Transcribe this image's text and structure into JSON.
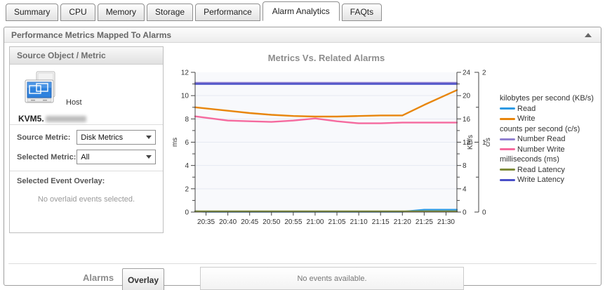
{
  "tabs": {
    "items": [
      "Summary",
      "CPU",
      "Memory",
      "Storage",
      "Performance",
      "Alarm Analytics",
      "FAQts"
    ],
    "active": "Alarm Analytics"
  },
  "panel": {
    "title": "Performance Metrics Mapped To Alarms"
  },
  "source_panel": {
    "title": "Source Object / Metric",
    "host_type": "Host",
    "host_name_prefix": "KVM5.",
    "source_metric_label": "Source Metric:",
    "source_metric_value": "Disk Metrics",
    "selected_metric_label": "Selected Metric:",
    "selected_metric_value": "All",
    "event_overlay_label": "Selected Event Overlay:",
    "event_overlay_empty": "No overlaid events selected."
  },
  "alarms": {
    "label": "Alarms",
    "overlay_button": "Overlay",
    "events_empty": "No events available."
  },
  "chart_data": {
    "type": "line",
    "title": "Metrics Vs. Related Alarms",
    "x_labels": [
      "20:35",
      "20:40",
      "20:45",
      "20:50",
      "20:55",
      "21:00",
      "21:05",
      "21:10",
      "21:15",
      "21:20",
      "21:25",
      "21:30"
    ],
    "axes": [
      {
        "id": "ms",
        "label": "ms",
        "side": "left",
        "min": 0,
        "max": 12,
        "major": 2,
        "minor": 1
      },
      {
        "id": "kbps",
        "label": "KB/s",
        "side": "right",
        "min": 0,
        "max": 24,
        "major": 4,
        "minor": 2
      },
      {
        "id": "cps",
        "label": "c/s",
        "side": "right2",
        "min": 0,
        "max": 2,
        "major": 1,
        "minor": 0.5
      }
    ],
    "grid": {
      "horizontal": true,
      "plot_bg": "#f8f9fc",
      "grid_color": "#e6e9f2"
    },
    "legend_groups": [
      {
        "label": "kilobytes per second (KB/s)",
        "items": [
          {
            "name": "Read",
            "color": "#2d9ae3"
          },
          {
            "name": "Write",
            "color": "#e8860d"
          }
        ]
      },
      {
        "label": "counts per second (c/s)",
        "items": [
          {
            "name": "Number Read",
            "color": "#9080d0"
          },
          {
            "name": "Number Write",
            "color": "#f56a9e"
          }
        ]
      },
      {
        "label": "milliseconds (ms)",
        "items": [
          {
            "name": "Read Latency",
            "color": "#7f8c3a"
          },
          {
            "name": "Write Latency",
            "color": "#4a50c8"
          }
        ]
      }
    ],
    "series": [
      {
        "name": "Read",
        "axis": "kbps",
        "color": "#2d9ae3",
        "values": [
          0.05,
          0.05,
          0.05,
          0.05,
          0.05,
          0.05,
          0.05,
          0.05,
          0.05,
          0.05,
          0.4,
          0.4
        ]
      },
      {
        "name": "Write",
        "axis": "kbps",
        "color": "#e8860d",
        "values": [
          17.8,
          17.4,
          17.0,
          16.7,
          16.5,
          16.4,
          16.4,
          16.5,
          16.6,
          16.6,
          18.4,
          20.1
        ]
      },
      {
        "name": "Number Read",
        "axis": "cps",
        "color": "#9080d0",
        "values": [
          1.85,
          1.85,
          1.85,
          1.85,
          1.85,
          1.85,
          1.85,
          1.85,
          1.85,
          1.85,
          1.85,
          1.85
        ]
      },
      {
        "name": "Number Write",
        "axis": "cps",
        "color": "#f56a9e",
        "values": [
          1.35,
          1.31,
          1.3,
          1.29,
          1.31,
          1.34,
          1.3,
          1.27,
          1.27,
          1.28,
          1.28,
          1.28
        ]
      },
      {
        "name": "Read Latency",
        "axis": "ms",
        "color": "#7f8c3a",
        "values": [
          0.06,
          0.06,
          0.06,
          0.06,
          0.06,
          0.06,
          0.06,
          0.06,
          0.06,
          0.06,
          0.06,
          0.06
        ]
      },
      {
        "name": "Write Latency",
        "axis": "ms",
        "color": "#4a50c8",
        "values": [
          11,
          11,
          11,
          11,
          11,
          11,
          11,
          11,
          11,
          11,
          11,
          11
        ]
      }
    ]
  }
}
